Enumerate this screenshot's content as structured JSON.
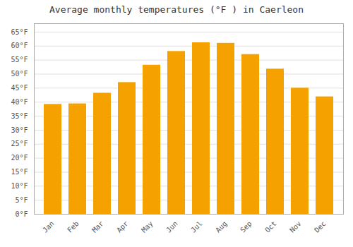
{
  "chart_data": {
    "type": "bar",
    "title": "Average monthly temperatures (°F ) in Caerleon",
    "categories": [
      "Jan",
      "Feb",
      "Mar",
      "Apr",
      "May",
      "Jun",
      "Jul",
      "Aug",
      "Sep",
      "Oct",
      "Nov",
      "Dec"
    ],
    "values": [
      39.2,
      39.4,
      43.2,
      47.0,
      53.2,
      58.1,
      61.2,
      61.0,
      57.0,
      51.8,
      45.0,
      41.9
    ],
    "color": "#F5A200",
    "ylim": [
      0,
      68
    ],
    "yticks": [
      {
        "value": 0,
        "label": "0°F"
      },
      {
        "value": 5,
        "label": "5°F"
      },
      {
        "value": 10,
        "label": "10°F"
      },
      {
        "value": 15,
        "label": "15°F"
      },
      {
        "value": 20,
        "label": "20°F"
      },
      {
        "value": 25,
        "label": "25°F"
      },
      {
        "value": 30,
        "label": "30°F"
      },
      {
        "value": 35,
        "label": "35°F"
      },
      {
        "value": 40,
        "label": "40°F"
      },
      {
        "value": 45,
        "label": "45°F"
      },
      {
        "value": 50,
        "label": "50°F"
      },
      {
        "value": 55,
        "label": "55°F"
      },
      {
        "value": 60,
        "label": "60°F"
      },
      {
        "value": 65,
        "label": "65°F"
      }
    ],
    "grid": true
  }
}
